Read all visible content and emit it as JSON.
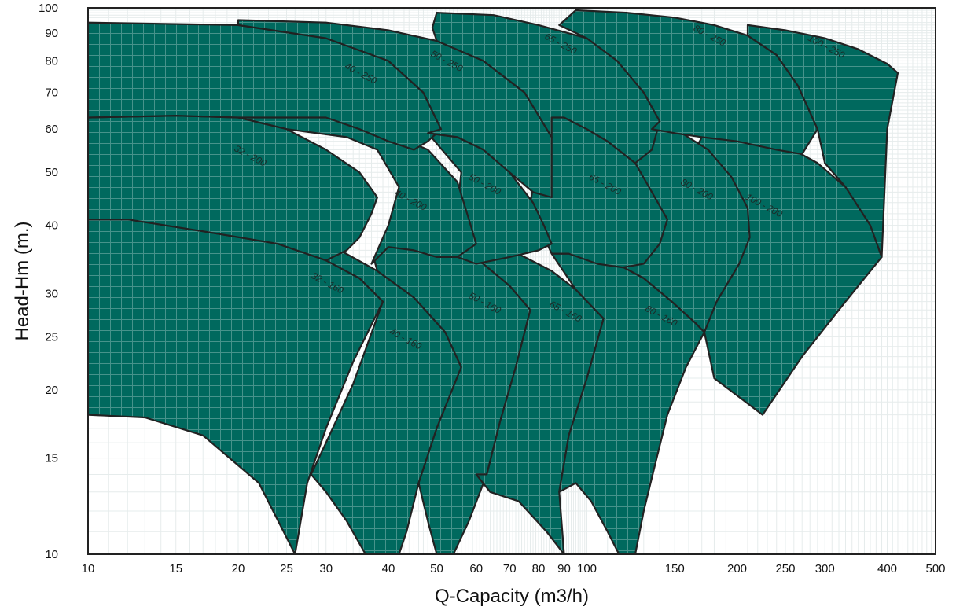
{
  "chart_data": {
    "type": "area",
    "xlabel": "Q-Capacity (m3/h)",
    "ylabel": "Head-Hm (m.)",
    "x_scale": "log",
    "y_scale": "log",
    "xlim": [
      10,
      500
    ],
    "ylim": [
      10,
      100
    ],
    "xticks": [
      10,
      15,
      20,
      25,
      30,
      40,
      50,
      60,
      70,
      80,
      90,
      100,
      150,
      200,
      250,
      300,
      400,
      500
    ],
    "yticks": [
      10,
      15,
      20,
      25,
      30,
      40,
      50,
      60,
      70,
      80,
      90,
      100
    ],
    "grid": true,
    "fill_color": "#00695e",
    "edge_color": "#222222",
    "series": [
      {
        "name": "32 - 160",
        "label_at": [
          30,
          31
        ],
        "outline": [
          [
            10,
            41
          ],
          [
            12,
            41
          ],
          [
            17,
            39
          ],
          [
            24,
            37
          ],
          [
            30,
            34.5
          ],
          [
            35,
            32
          ],
          [
            39,
            29
          ],
          [
            34,
            22.5
          ],
          [
            30,
            17
          ],
          [
            27.5,
            13.5
          ],
          [
            26,
            10
          ],
          [
            22,
            13.5
          ],
          [
            17,
            16.5
          ],
          [
            13,
            17.8
          ],
          [
            10,
            18
          ]
        ]
      },
      {
        "name": "40 - 160",
        "label_at": [
          43,
          24.5
        ],
        "outline": [
          [
            26,
            37.5
          ],
          [
            32,
            36
          ],
          [
            38,
            33
          ],
          [
            45,
            29.5
          ],
          [
            52,
            25.5
          ],
          [
            56,
            22
          ],
          [
            50,
            17
          ],
          [
            46,
            13.5
          ],
          [
            43.5,
            11
          ],
          [
            42,
            10
          ],
          [
            36,
            10
          ],
          [
            33,
            11.5
          ],
          [
            30,
            13
          ],
          [
            28,
            14
          ],
          [
            30,
            16
          ],
          [
            34,
            20.5
          ],
          [
            39,
            29
          ],
          [
            35,
            32
          ],
          [
            30,
            34.5
          ]
        ]
      },
      {
        "name": "50 - 160",
        "label_at": [
          62,
          28.5
        ],
        "outline": [
          [
            40,
            38.5
          ],
          [
            48,
            37.5
          ],
          [
            55,
            36
          ],
          [
            62,
            34
          ],
          [
            70,
            31
          ],
          [
            77,
            28
          ],
          [
            72,
            22
          ],
          [
            67,
            17.5
          ],
          [
            63,
            14
          ],
          [
            58,
            11.5
          ],
          [
            54,
            10
          ],
          [
            50,
            10
          ],
          [
            48,
            11.5
          ],
          [
            46,
            13.5
          ],
          [
            50,
            17
          ],
          [
            56,
            22
          ],
          [
            52,
            25.5
          ],
          [
            45,
            29.5
          ],
          [
            38,
            33
          ],
          [
            37.5,
            34.5
          ]
        ]
      },
      {
        "name": "65 - 160",
        "label_at": [
          90,
          27.5
        ],
        "outline": [
          [
            55,
            37
          ],
          [
            65,
            37
          ],
          [
            75,
            35
          ],
          [
            85,
            33
          ],
          [
            95,
            30.5
          ],
          [
            108,
            27
          ],
          [
            100,
            21
          ],
          [
            92,
            16.5
          ],
          [
            88,
            13
          ],
          [
            90,
            10
          ],
          [
            83,
            11
          ],
          [
            73,
            12.5
          ],
          [
            64,
            13
          ],
          [
            60,
            14
          ],
          [
            63,
            14
          ],
          [
            67,
            17.5
          ],
          [
            72,
            22
          ],
          [
            77,
            28
          ],
          [
            70,
            31
          ],
          [
            62,
            34
          ]
        ]
      },
      {
        "name": "80 - 160",
        "label_at": [
          140,
          27
        ],
        "outline": [
          [
            85,
            35.5
          ],
          [
            100,
            35.5
          ],
          [
            115,
            34
          ],
          [
            130,
            32
          ],
          [
            148,
            29
          ],
          [
            165,
            26.5
          ],
          [
            172,
            25.5
          ],
          [
            158,
            22
          ],
          [
            145,
            18
          ],
          [
            138,
            15
          ],
          [
            130,
            12
          ],
          [
            125,
            10
          ],
          [
            116,
            10
          ],
          [
            110,
            11
          ],
          [
            102,
            12.5
          ],
          [
            95,
            13.5
          ],
          [
            88,
            13
          ],
          [
            92,
            16.5
          ],
          [
            100,
            21
          ],
          [
            108,
            27
          ],
          [
            95,
            30.5
          ]
        ]
      },
      {
        "name": "100 - 200",
        "label_at": [
          225,
          43
        ],
        "outline": [
          [
            170,
            58
          ],
          [
            210,
            58
          ],
          [
            250,
            56
          ],
          [
            290,
            52
          ],
          [
            330,
            47
          ],
          [
            370,
            40
          ],
          [
            390,
            35
          ],
          [
            330,
            29
          ],
          [
            270,
            23
          ],
          [
            225,
            18
          ],
          [
            180,
            21
          ],
          [
            172,
            25.5
          ],
          [
            182,
            29
          ],
          [
            202,
            34
          ],
          [
            210,
            38
          ],
          [
            200,
            44
          ],
          [
            185,
            51
          ],
          [
            165,
            55
          ]
        ]
      },
      {
        "name": "80 - 200",
        "label_at": [
          165,
          46
        ],
        "outline": [
          [
            95,
            62
          ],
          [
            115,
            62
          ],
          [
            135,
            61
          ],
          [
            155,
            59
          ],
          [
            175,
            55
          ],
          [
            195,
            49
          ],
          [
            210,
            43
          ],
          [
            212,
            38
          ],
          [
            202,
            34
          ],
          [
            182,
            29
          ],
          [
            172,
            25.5
          ],
          [
            165,
            26.5
          ],
          [
            148,
            29
          ],
          [
            130,
            32
          ],
          [
            115,
            34
          ],
          [
            100,
            35.5
          ],
          [
            92,
            36.5
          ],
          [
            95,
            40
          ],
          [
            120,
            43
          ],
          [
            140,
            42
          ]
        ]
      },
      {
        "name": "65 - 200",
        "label_at": [
          108,
          47
        ],
        "outline": [
          [
            80,
            64
          ],
          [
            90,
            63
          ],
          [
            100,
            60
          ],
          [
            110,
            57
          ],
          [
            125,
            52
          ],
          [
            135,
            46
          ],
          [
            145,
            41
          ],
          [
            140,
            37
          ],
          [
            130,
            34
          ],
          [
            118,
            33.5
          ],
          [
            105,
            34
          ],
          [
            92,
            35.5
          ],
          [
            85,
            35.5
          ],
          [
            80,
            40
          ],
          [
            77,
            44
          ],
          [
            80,
            53
          ]
        ]
      },
      {
        "name": "50 - 200",
        "label_at": [
          62,
          47
        ],
        "outline": [
          [
            48,
            59
          ],
          [
            55,
            58
          ],
          [
            62,
            55
          ],
          [
            70,
            50
          ],
          [
            78,
            44
          ],
          [
            82,
            40
          ],
          [
            85,
            37
          ],
          [
            80,
            36
          ],
          [
            70,
            35
          ],
          [
            60,
            34
          ],
          [
            55,
            35
          ],
          [
            50,
            36.5
          ],
          [
            52,
            38
          ],
          [
            55,
            43
          ],
          [
            56,
            50
          ]
        ]
      },
      {
        "name": "40 - 200",
        "label_at": [
          44,
          44
        ],
        "outline": [
          [
            20,
            69
          ],
          [
            25,
            68
          ],
          [
            30,
            66
          ],
          [
            35,
            63
          ],
          [
            40,
            59
          ],
          [
            48,
            55
          ],
          [
            55,
            48
          ],
          [
            58,
            41
          ],
          [
            60,
            37
          ],
          [
            55,
            35
          ],
          [
            50,
            35
          ],
          [
            45,
            36
          ],
          [
            40,
            36.5
          ],
          [
            37,
            34
          ],
          [
            40,
            40
          ],
          [
            42,
            47
          ],
          [
            38,
            55
          ],
          [
            33,
            58
          ],
          [
            25,
            60
          ],
          [
            20,
            63
          ]
        ]
      },
      {
        "name": "32 - 200",
        "label_at": [
          21,
          53
        ],
        "outline": [
          [
            10,
            63
          ],
          [
            15,
            63.5
          ],
          [
            20,
            63
          ],
          [
            25,
            60
          ],
          [
            30,
            55
          ],
          [
            35,
            50
          ],
          [
            38,
            45
          ],
          [
            37,
            42
          ],
          [
            35,
            38
          ],
          [
            33,
            36
          ],
          [
            30,
            34.5
          ],
          [
            24,
            37
          ],
          [
            17,
            39
          ],
          [
            12,
            41
          ],
          [
            10,
            41
          ]
        ]
      },
      {
        "name": "40 - 250",
        "label_at": [
          35,
          75
        ],
        "outline": [
          [
            10,
            94
          ],
          [
            20,
            93
          ],
          [
            30,
            88
          ],
          [
            40,
            80
          ],
          [
            47,
            70
          ],
          [
            51,
            60
          ],
          [
            48,
            57
          ],
          [
            45,
            55
          ],
          [
            40,
            57
          ],
          [
            35,
            60
          ],
          [
            30,
            63
          ],
          [
            25,
            63
          ],
          [
            20,
            63
          ],
          [
            15,
            63.5
          ],
          [
            10,
            63
          ]
        ]
      },
      {
        "name": "50 - 250",
        "label_at": [
          52,
          79
        ],
        "outline": [
          [
            20,
            95
          ],
          [
            30,
            94
          ],
          [
            40,
            91
          ],
          [
            50,
            87
          ],
          [
            62,
            80
          ],
          [
            75,
            70
          ],
          [
            85,
            58
          ],
          [
            85,
            45
          ],
          [
            78,
            46
          ],
          [
            70,
            50
          ],
          [
            62,
            55
          ],
          [
            55,
            58
          ],
          [
            48,
            59
          ],
          [
            51,
            60
          ],
          [
            47,
            70
          ],
          [
            40,
            80
          ],
          [
            30,
            88
          ],
          [
            20,
            93
          ]
        ]
      },
      {
        "name": "65 - 250",
        "label_at": [
          88,
          85
        ],
        "outline": [
          [
            50,
            98
          ],
          [
            65,
            97
          ],
          [
            80,
            93
          ],
          [
            100,
            88
          ],
          [
            115,
            80
          ],
          [
            130,
            70
          ],
          [
            140,
            62
          ],
          [
            135,
            55
          ],
          [
            125,
            52
          ],
          [
            110,
            57
          ],
          [
            100,
            60
          ],
          [
            90,
            63
          ],
          [
            85,
            63
          ],
          [
            85,
            58
          ],
          [
            75,
            70
          ],
          [
            62,
            80
          ],
          [
            50,
            87
          ],
          [
            49,
            92
          ]
        ]
      },
      {
        "name": "80 - 250",
        "label_at": [
          175,
          88
        ],
        "outline": [
          [
            95,
            99
          ],
          [
            120,
            98
          ],
          [
            150,
            96
          ],
          [
            180,
            93
          ],
          [
            210,
            89
          ],
          [
            240,
            82
          ],
          [
            265,
            72
          ],
          [
            290,
            60
          ],
          [
            270,
            54
          ],
          [
            240,
            55
          ],
          [
            200,
            57
          ],
          [
            170,
            58
          ],
          [
            150,
            59
          ],
          [
            135,
            60
          ],
          [
            140,
            62
          ],
          [
            130,
            70
          ],
          [
            115,
            80
          ],
          [
            100,
            88
          ],
          [
            88,
            93
          ]
        ]
      },
      {
        "name": "100 - 250",
        "label_at": [
          300,
          84
        ],
        "outline": [
          [
            210,
            93
          ],
          [
            250,
            91
          ],
          [
            300,
            88
          ],
          [
            350,
            84
          ],
          [
            400,
            79
          ],
          [
            420,
            76
          ],
          [
            400,
            60
          ],
          [
            390,
            35
          ],
          [
            370,
            40
          ],
          [
            330,
            47
          ],
          [
            300,
            52
          ],
          [
            290,
            60
          ],
          [
            265,
            72
          ],
          [
            240,
            82
          ],
          [
            210,
            89
          ]
        ]
      }
    ]
  }
}
